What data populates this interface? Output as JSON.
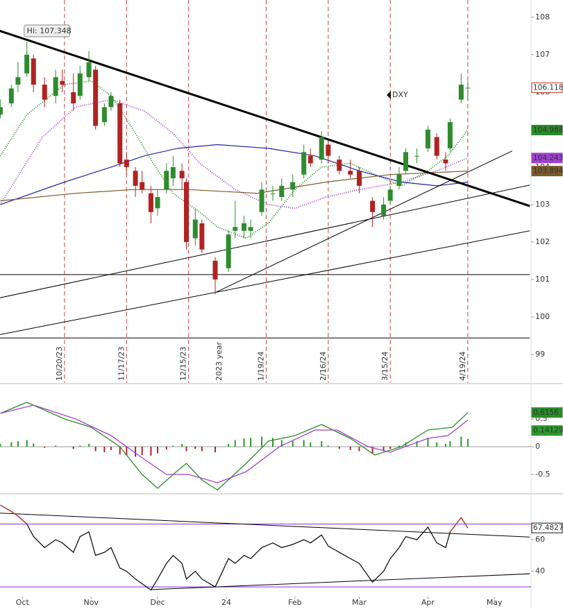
{
  "chart_data": [
    {
      "type": "candlestick",
      "symbol": "DXY",
      "annotation": "Hi: 107.348",
      "ylim": [
        98.24,
        108.46
      ],
      "yticks": [
        99,
        100,
        101,
        102,
        103,
        104,
        105,
        106,
        107,
        108
      ],
      "up_color": "#2e8b2e",
      "down_color": "#b22222",
      "last_label_color": "#c0392b",
      "candles": {
        "x": [
          "2023-09-21",
          "2023-09-26",
          "2023-09-29",
          "2023-10-03",
          "2023-10-06",
          "2023-10-11",
          "2023-10-16",
          "2023-10-19",
          "2023-10-24",
          "2023-10-27",
          "2023-10-31",
          "2023-11-03",
          "2023-11-07",
          "2023-11-10",
          "2023-11-14",
          "2023-11-17",
          "2023-11-21",
          "2023-11-24",
          "2023-11-28",
          "2023-12-01",
          "2023-12-05",
          "2023-12-08",
          "2023-12-12",
          "2023-12-14",
          "2023-12-18",
          "2023-12-21",
          "2023-12-27",
          "2024-01-02",
          "2024-01-05",
          "2024-01-09",
          "2024-01-12",
          "2024-01-17",
          "2024-01-22",
          "2024-01-26",
          "2024-01-31",
          "2024-02-05",
          "2024-02-08",
          "2024-02-13",
          "2024-02-16",
          "2024-02-21",
          "2024-02-26",
          "2024-03-01",
          "2024-03-07",
          "2024-03-12",
          "2024-03-15",
          "2024-03-19",
          "2024-03-22",
          "2024-03-27",
          "2024-04-01",
          "2024-04-05",
          "2024-04-09",
          "2024-04-11",
          "2024-04-16",
          "2024-04-19"
        ],
        "open": [
          105.4,
          105.7,
          106.2,
          106.5,
          106.9,
          106.2,
          105.9,
          106.3,
          106.0,
          105.9,
          106.4,
          106.6,
          105.2,
          105.6,
          105.7,
          104.2,
          103.9,
          103.6,
          103.3,
          102.9,
          103.4,
          103.7,
          103.9,
          103.6,
          102.1,
          102.5,
          101.5,
          101.3,
          102.3,
          102.3,
          102.3,
          102.8,
          103.3,
          103.2,
          103.4,
          103.8,
          104.3,
          104.2,
          104.6,
          104.2,
          103.9,
          103.9,
          103.1,
          102.7,
          103.1,
          103.5,
          103.9,
          104.3,
          104.5,
          104.8,
          104.2,
          104.5,
          105.8,
          106.1
        ],
        "high": [
          105.8,
          106.2,
          106.8,
          107.348,
          107.0,
          106.4,
          106.6,
          106.6,
          106.5,
          106.7,
          107.1,
          106.7,
          105.7,
          106.0,
          105.8,
          104.4,
          104.0,
          103.9,
          103.5,
          103.4,
          104.1,
          104.3,
          104.1,
          103.7,
          102.9,
          102.6,
          101.6,
          102.3,
          103.1,
          102.7,
          102.6,
          103.6,
          103.5,
          103.7,
          103.8,
          104.6,
          104.5,
          104.96,
          104.7,
          104.3,
          104.2,
          104.0,
          103.2,
          103.2,
          103.5,
          104.0,
          104.5,
          104.5,
          105.1,
          104.9,
          104.4,
          105.3,
          106.5,
          106.3
        ],
        "low": [
          105.3,
          105.6,
          106.0,
          106.4,
          106.0,
          105.6,
          105.7,
          106.0,
          105.5,
          105.8,
          106.3,
          105.0,
          105.1,
          105.5,
          104.0,
          103.8,
          103.2,
          103.3,
          102.5,
          102.7,
          103.3,
          103.5,
          103.4,
          101.8,
          101.9,
          101.7,
          100.6,
          101.2,
          102.1,
          102.1,
          102.1,
          102.7,
          103.1,
          103.1,
          103.2,
          103.7,
          104.0,
          104.1,
          104.1,
          103.8,
          103.7,
          103.3,
          102.4,
          102.6,
          103.0,
          103.4,
          103.8,
          104.1,
          104.4,
          104.2,
          103.9,
          104.4,
          105.7,
          105.8
        ],
        "close": [
          105.6,
          106.1,
          106.4,
          107.0,
          106.2,
          105.8,
          106.4,
          106.2,
          105.7,
          106.5,
          106.8,
          105.1,
          105.6,
          105.9,
          104.1,
          104.0,
          103.5,
          103.4,
          102.8,
          103.2,
          103.9,
          104.0,
          103.7,
          102.0,
          102.6,
          101.8,
          101.0,
          102.2,
          102.4,
          102.5,
          102.4,
          103.4,
          103.3,
          103.5,
          103.6,
          104.4,
          104.1,
          104.8,
          104.3,
          103.9,
          103.8,
          103.5,
          102.8,
          103.0,
          103.4,
          103.8,
          104.4,
          104.3,
          105.0,
          104.3,
          104.1,
          105.2,
          106.2,
          106.118
        ]
      },
      "moving_averages": [
        {
          "color": "#2a8a2a",
          "dotted": true,
          "label": true,
          "x": [
            "2023-09-21",
            "2023-10-03",
            "2023-10-20",
            "2023-11-01",
            "2023-11-10",
            "2023-11-20",
            "2023-11-28",
            "2023-12-08",
            "2023-12-20",
            "2023-12-28",
            "2024-01-10",
            "2024-01-20",
            "2024-02-01",
            "2024-02-13",
            "2024-02-26",
            "2024-03-08",
            "2024-03-20",
            "2024-04-01",
            "2024-04-10",
            "2024-04-19"
          ],
          "values": [
            104.3,
            105.4,
            106.2,
            106.3,
            105.9,
            105.0,
            104.2,
            103.3,
            102.8,
            102.4,
            102.1,
            102.5,
            103.4,
            104.0,
            104.1,
            103.8,
            103.5,
            103.9,
            104.3,
            104.988
          ]
        },
        {
          "color": "#a040d0",
          "dotted": true,
          "label": true,
          "x": [
            "2023-09-21",
            "2023-10-10",
            "2023-10-25",
            "2023-11-10",
            "2023-11-25",
            "2023-12-08",
            "2023-12-20",
            "2024-01-05",
            "2024-01-20",
            "2024-02-01",
            "2024-02-15",
            "2024-03-01",
            "2024-03-20",
            "2024-04-05",
            "2024-04-19"
          ],
          "values": [
            103.0,
            104.8,
            105.6,
            105.8,
            105.5,
            104.9,
            104.1,
            103.4,
            103.0,
            102.9,
            103.2,
            103.4,
            103.6,
            103.9,
            104.243
          ]
        },
        {
          "color": "#2222aa",
          "dotted": false,
          "label": false,
          "x": [
            "2023-09-21",
            "2023-10-20",
            "2023-11-10",
            "2023-11-25",
            "2023-12-10",
            "2023-12-28",
            "2024-01-20",
            "2024-02-10",
            "2024-03-01",
            "2024-03-20",
            "2024-04-05",
            "2024-04-19"
          ],
          "values": [
            103.0,
            103.6,
            104.0,
            104.3,
            104.5,
            104.6,
            104.5,
            104.3,
            103.9,
            103.6,
            103.5,
            103.6
          ]
        },
        {
          "color": "#7a5a2a",
          "dotted": false,
          "label": true,
          "x": [
            "2023-09-21",
            "2023-10-25",
            "2023-11-20",
            "2023-12-15",
            "2024-01-15",
            "2024-02-15",
            "2024-03-15",
            "2024-04-19"
          ],
          "values": [
            103.1,
            103.3,
            103.4,
            103.4,
            103.3,
            103.6,
            103.8,
            103.894
          ]
        }
      ],
      "trendlines": [
        {
          "x": [
            "2023-09-20",
            "2024-05-17"
          ],
          "y": [
            107.65,
            102.96
          ],
          "bold": true
        },
        {
          "x": [
            "2023-09-20",
            "2024-05-17"
          ],
          "y": [
            100.5,
            103.52
          ],
          "bold": false
        },
        {
          "x": [
            "2023-09-20",
            "2024-05-17"
          ],
          "y": [
            99.52,
            102.3
          ],
          "bold": false
        },
        {
          "x": [
            "2023-12-27",
            "2024-05-09"
          ],
          "y": [
            100.65,
            104.43
          ],
          "bold": false
        },
        {
          "x": [
            "2023-09-20",
            "2024-05-17"
          ],
          "y": [
            101.13,
            101.13
          ],
          "bold": false
        },
        {
          "x": [
            "2023-09-20",
            "2024-05-17"
          ],
          "y": [
            99.44,
            99.44
          ],
          "bold": false
        }
      ],
      "events": [
        {
          "x": "2023-10-20",
          "label": "10/20/23"
        },
        {
          "x": "2023-11-17",
          "label": "11/17/23"
        },
        {
          "x": "2023-12-15",
          "label": "12/15/23"
        },
        {
          "x": "2024-01-19",
          "label": "1/19/24"
        },
        {
          "x": "2024-02-16",
          "label": "2/16/24"
        },
        {
          "x": "2024-03-15",
          "label": "3/15/24"
        },
        {
          "x": "2024-04-19",
          "label": "4/19/24"
        }
      ],
      "year_marker": {
        "x": "2024-01-01",
        "label": "2023 year"
      }
    },
    {
      "type": "line",
      "ylim": [
        -0.825,
        1.1
      ],
      "yticks": [
        0.5,
        0,
        -0.5
      ],
      "series": [
        {
          "color": "#2a8a2a",
          "x": [
            "2023-09-21",
            "2023-10-03",
            "2023-10-20",
            "2023-11-01",
            "2023-11-14",
            "2023-11-24",
            "2023-12-01",
            "2023-12-08",
            "2023-12-14",
            "2023-12-21",
            "2023-12-28",
            "2024-01-10",
            "2024-01-20",
            "2024-02-01",
            "2024-02-13",
            "2024-02-26",
            "2024-03-08",
            "2024-03-20",
            "2024-04-01",
            "2024-04-12",
            "2024-04-19"
          ],
          "values": [
            0.6,
            0.8,
            0.5,
            0.35,
            0.0,
            -0.5,
            -0.75,
            -0.5,
            -0.3,
            -0.6,
            -0.78,
            -0.3,
            0.1,
            0.2,
            0.4,
            0.15,
            -0.15,
            0.0,
            0.3,
            0.35,
            0.6156
          ]
        },
        {
          "color": "#a040d0",
          "x": [
            "2023-09-21",
            "2023-10-06",
            "2023-10-25",
            "2023-11-10",
            "2023-11-24",
            "2023-12-05",
            "2023-12-15",
            "2023-12-28",
            "2024-01-10",
            "2024-01-25",
            "2024-02-10",
            "2024-02-20",
            "2024-03-05",
            "2024-03-15",
            "2024-04-01",
            "2024-04-10",
            "2024-04-19"
          ],
          "values": [
            0.6,
            0.75,
            0.5,
            0.2,
            -0.2,
            -0.5,
            -0.5,
            -0.65,
            -0.45,
            0.0,
            0.3,
            0.3,
            0.0,
            -0.1,
            0.15,
            0.2,
            0.48
          ]
        }
      ],
      "histogram": {
        "pos_color": "#2a9a2a",
        "neg_color": "#b22222",
        "values": [
          0.05,
          0.08,
          0.1,
          0.12,
          0.06,
          -0.02,
          0.02,
          0.0,
          -0.04,
          0.02,
          0.05,
          -0.08,
          -0.1,
          -0.06,
          -0.14,
          -0.16,
          -0.18,
          -0.15,
          -0.16,
          -0.12,
          -0.05,
          0.02,
          0.05,
          -0.08,
          -0.04,
          -0.08,
          -0.1,
          0.05,
          0.12,
          0.15,
          0.16,
          0.18,
          0.16,
          0.12,
          0.1,
          0.12,
          0.08,
          0.1,
          0.02,
          -0.04,
          -0.06,
          -0.08,
          -0.12,
          -0.08,
          -0.04,
          0.02,
          0.08,
          0.1,
          0.16,
          0.08,
          0.05,
          0.1,
          0.18,
          0.14129
        ]
      }
    },
    {
      "type": "line",
      "ylim": [
        23.9,
        87.4
      ],
      "yticks": [
        60,
        40
      ],
      "hlines": [
        70,
        30
      ],
      "hline_color": "#8a2be2",
      "series": [
        {
          "color": "#111111",
          "values": [
            82,
            78,
            75,
            70,
            62,
            55,
            60,
            58,
            52,
            62,
            65,
            50,
            52,
            55,
            42,
            40,
            35,
            32,
            28,
            35,
            45,
            50,
            45,
            35,
            40,
            35,
            30,
            48,
            45,
            50,
            48,
            55,
            58,
            55,
            57,
            60,
            58,
            63,
            56,
            52,
            48,
            45,
            33,
            40,
            48,
            55,
            62,
            60,
            68,
            58,
            55,
            65,
            74,
            67.4827
          ]
        }
      ],
      "overbought_color": "#c0392b",
      "trendlines": [
        {
          "x": [
            "2023-09-20",
            "2024-05-17"
          ],
          "y": [
            77,
            61.7
          ]
        },
        {
          "x": [
            "2023-11-28",
            "2024-05-17"
          ],
          "y": [
            28.3,
            38.3
          ]
        }
      ],
      "xticks": [
        {
          "value": "2023-10-01",
          "label": "Oct"
        },
        {
          "value": "2023-11-01",
          "label": "Nov"
        },
        {
          "value": "2023-12-01",
          "label": "Dec"
        },
        {
          "value": "2024-01-01",
          "label": "24"
        },
        {
          "value": "2024-02-01",
          "label": "Feb"
        },
        {
          "value": "2024-03-01",
          "label": "Mar"
        },
        {
          "value": "2024-04-01",
          "label": "Apr"
        },
        {
          "value": "2024-05-01",
          "label": "May"
        }
      ]
    }
  ]
}
